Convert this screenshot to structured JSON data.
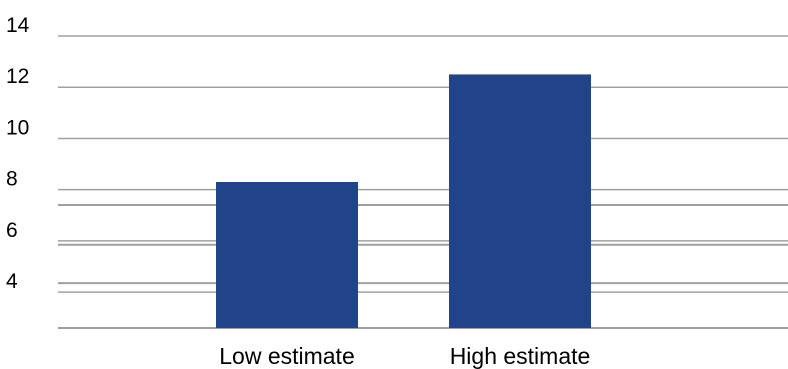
{
  "chart_data": {
    "type": "bar",
    "categories": [
      "Low estimate",
      "High estimate"
    ],
    "values": [
      8.3,
      12.5
    ],
    "ylim": [
      2.6,
      14
    ],
    "yticks": [
      4,
      6,
      8,
      10,
      12,
      14
    ],
    "grid": true,
    "extra_gridlines": [
      4.35,
      5.85,
      7.4
    ],
    "bar_color": "#21438A",
    "grid_color": "#A0A0A0",
    "title": "",
    "xlabel": "",
    "ylabel": ""
  }
}
